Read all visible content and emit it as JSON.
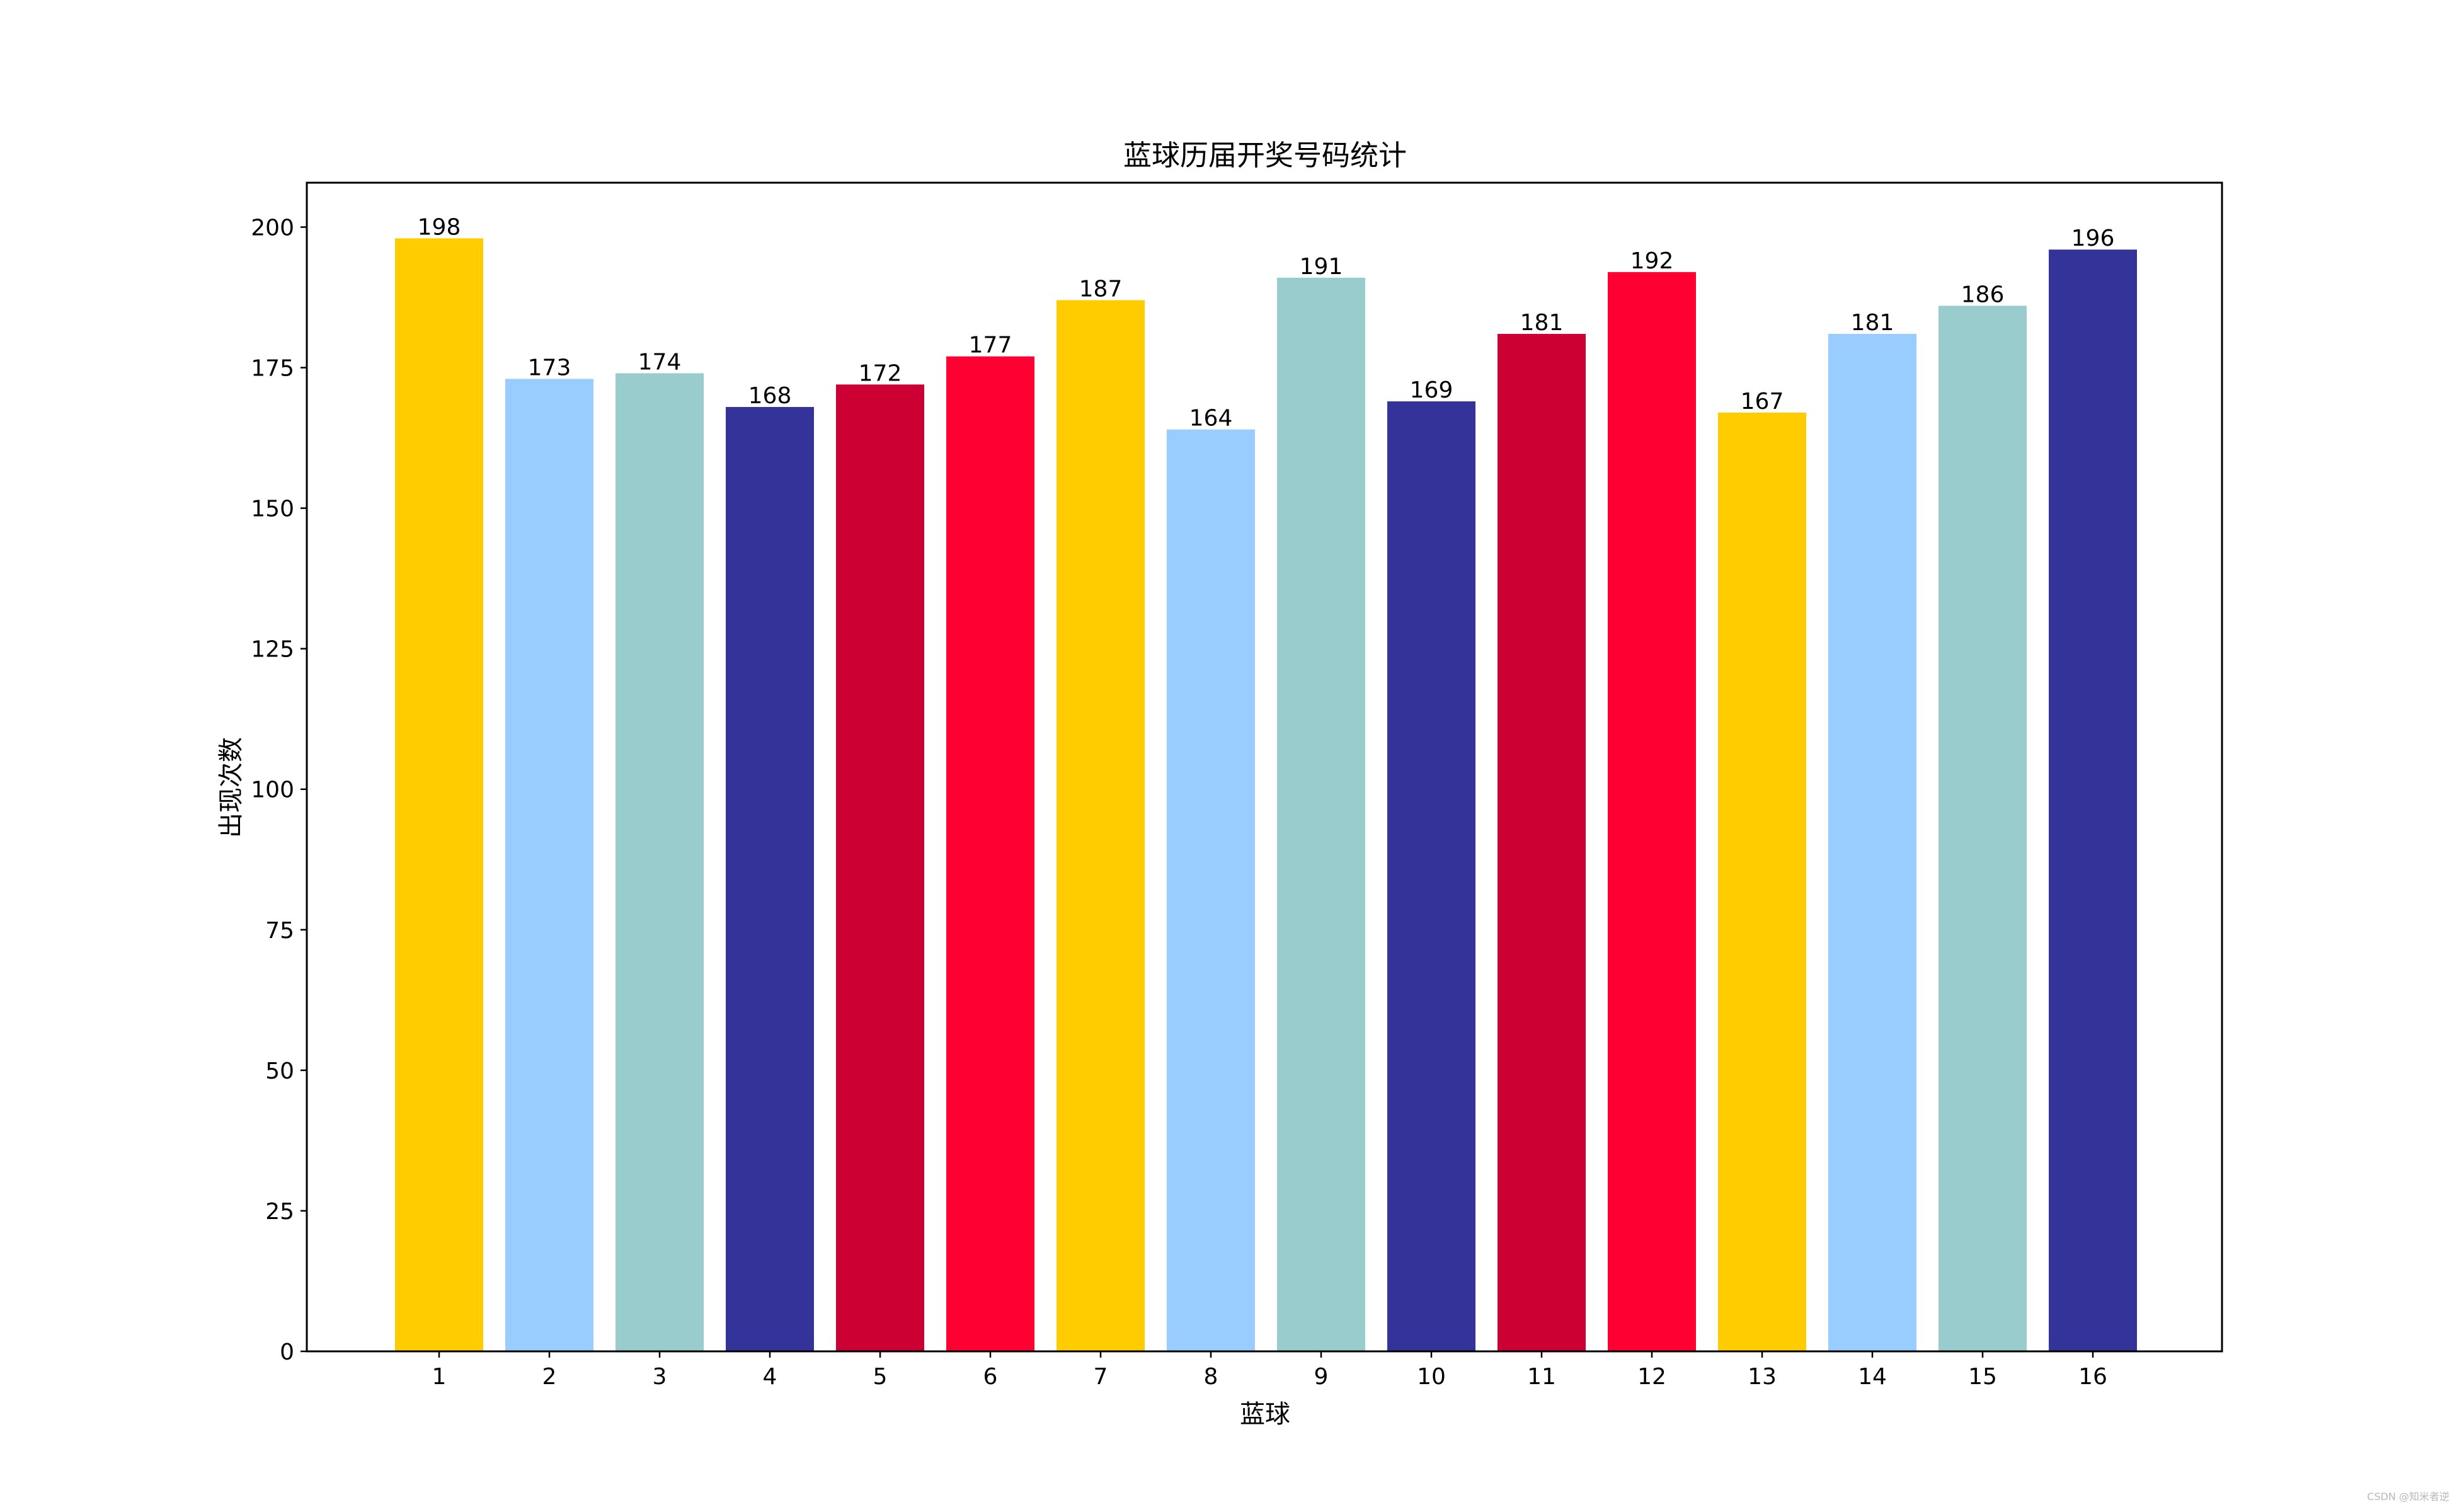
{
  "chart_data": {
    "type": "bar",
    "title": "蓝球历届开奖号码统计",
    "xlabel": "蓝球",
    "ylabel": "出现次数",
    "categories": [
      "1",
      "2",
      "3",
      "4",
      "5",
      "6",
      "7",
      "8",
      "9",
      "10",
      "11",
      "12",
      "13",
      "14",
      "15",
      "16"
    ],
    "values": [
      198,
      173,
      174,
      168,
      172,
      177,
      187,
      164,
      191,
      169,
      181,
      192,
      167,
      181,
      186,
      196
    ],
    "bar_colors": [
      "#ffcc00",
      "#99ccff",
      "#99cccc",
      "#333399",
      "#cc0033",
      "#ff0033",
      "#ffcc00",
      "#99ccff",
      "#99cccc",
      "#333399",
      "#cc0033",
      "#ff0033",
      "#ffcc00",
      "#99ccff",
      "#99cccc",
      "#333399"
    ],
    "ylim": [
      0,
      207.9
    ],
    "yticks": [
      0,
      25,
      50,
      75,
      100,
      125,
      150,
      175,
      200
    ],
    "grid": false,
    "legend": "none"
  },
  "watermark": "CSDN @知米者逆"
}
